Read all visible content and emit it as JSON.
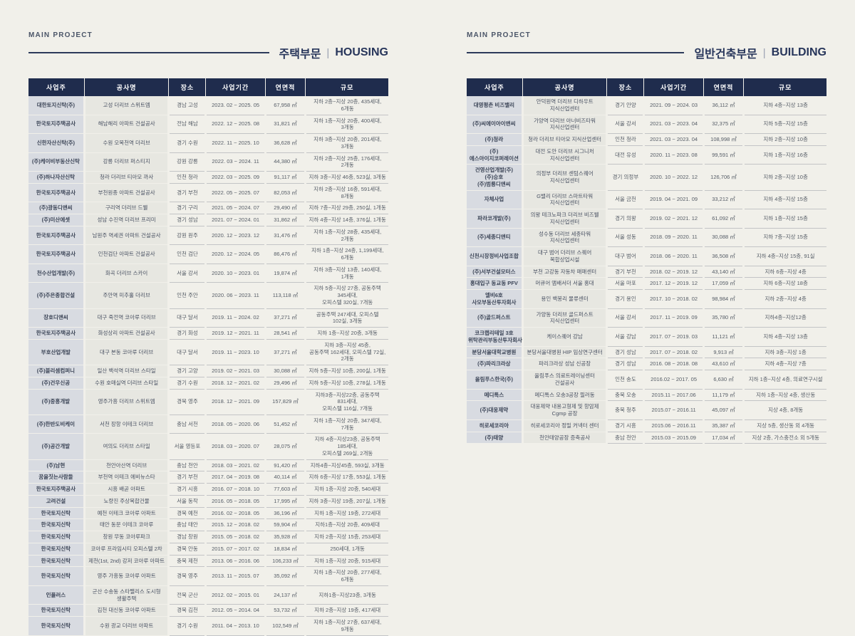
{
  "page": {
    "bg_color": "#f1f0ea",
    "navy": "#1f2c4d",
    "eyebrow": "MAIN PROJECT"
  },
  "sections": [
    {
      "eyebrow": "MAIN PROJECT",
      "title_ko": "주택부문",
      "title_divider": "|",
      "title_en": "HOUSING",
      "columns": [
        "사업주",
        "공사명",
        "장소",
        "사업기간",
        "연면적",
        "규모"
      ],
      "rows": [
        [
          "대한토지신탁(주)",
          "고성 더리브 스위트엠",
          "경남 고성",
          "2023. 02 ~ 2025. 05",
          "67,958 ㎡",
          "지하 2층~지상 20층, 435세대, 6개동"
        ],
        [
          "한국토지주택공사",
          "해남해리 아파트 건설공사",
          "전남 해남",
          "2022. 12 ~ 2025. 08",
          "31,821 ㎡",
          "지하 1층~지상 20층, 400세대, 3개동"
        ],
        [
          "신한자산신탁(주)",
          "수원 오목천역 더리브",
          "경기 수원",
          "2022. 11 ~ 2025. 10",
          "36,628 ㎡",
          "지하 3층~지상 20층, 201세대, 3개동"
        ],
        [
          "(주)케이비부동산신탁",
          "강릉 더리브 퍼스티지",
          "강원 강릉",
          "2022. 03 ~ 2024. 11",
          "44,380 ㎡",
          "지하 2층~지상 25층, 176세대, 2개동"
        ],
        [
          "(주)하나자산신탁",
          "청라 더리브 티아모 까사",
          "인천 청라",
          "2022. 03 ~ 2025. 09",
          "91,117 ㎡",
          "지하 3층~지상 46층, 523실, 3개동"
        ],
        [
          "한국토지주택공사",
          "부천원종 아파트 건설공사",
          "경기 부천",
          "2022. 05 ~ 2025. 07",
          "82,053 ㎡",
          "지하 2층~지상 16층, 591세대, 8개동"
        ],
        [
          "(주)광동디앤씨",
          "구리역 더리브 드웰",
          "경기 구리",
          "2021. 05 ~ 2024. 07",
          "29,490 ㎡",
          "지하 7층~지상 29층, 250실, 1개동"
        ],
        [
          "(주)미산에셋",
          "성남 수진역 더리브 프리미",
          "경기 성남",
          "2021. 07 ~ 2024. 01",
          "31,862 ㎡",
          "지하 4층~지상 14층, 376실, 1개동"
        ],
        [
          "한국토지주택공사",
          "남원주 역세권 아파트 건설공사",
          "강원 원주",
          "2020. 12 ~ 2023. 12",
          "31,476 ㎡",
          "지하 1층~지상 28층, 435세대, 2개동"
        ],
        [
          "한국토지주택공사",
          "인천검단 아파트 건설공사",
          "인천 검단",
          "2020. 12 ~ 2024. 05",
          "86,476 ㎡",
          "지하 1층~지상 24층, 1,199세대, 6개동"
        ],
        [
          "천수산업개발(주)",
          "화곡 더리브 스카이",
          "서울 강서",
          "2020. 10 ~ 2023. 01",
          "19,874 ㎡",
          "지하 3층~지상 13층, 140세대, 1개동"
        ],
        [
          "(주)주은종합건설",
          "주안역 미추홀 더리브",
          "인천 주안",
          "2020. 06 ~ 2023. 11",
          "113,118 ㎡",
          "지하 5층~지상 27층, 공동주택 345세대,\n오피스텔 320실, 7개동"
        ],
        [
          "장호디앤씨",
          "대구 죽전역 코아루 더리브",
          "대구 달서",
          "2019. 11 ~ 2024. 02",
          "37,271 ㎡",
          "공동주택 247세대, 오피스텔 102실, 3개동"
        ],
        [
          "한국토지주택공사",
          "화성상리 아파트 건설공사",
          "경기 화성",
          "2019. 12 ~ 2021. 11",
          "28,541 ㎡",
          "지하 1층~지상 20층, 3개동"
        ],
        [
          "부호산업개발",
          "대구 본동 코아루 더리브",
          "대구 달서",
          "2019. 11 ~ 2023. 10",
          "37,271 ㎡",
          "지하 3층~지상 45층,\n공동주택 162세대, 오피스텔 72실, 2개동"
        ],
        [
          "(주)블리셈컴퍼니",
          "일산 백석역 더리브 스타일",
          "경기 고양",
          "2019. 02 ~ 2021. 03",
          "30,088 ㎡",
          "지하 5층~지상 10층, 200실, 1개동"
        ],
        [
          "(주)건우신공",
          "수원 호매실역 더리브 스타일",
          "경기 수원",
          "2018. 12 ~ 2021. 02",
          "29,496 ㎡",
          "지하 5층~지상 10층, 278실, 1개동"
        ],
        [
          "(주)중흥개발",
          "영주가흥 더리브 스위트엠",
          "경북 영주",
          "2018. 12 ~ 2021. 09",
          "157,829 ㎡",
          "지하3층~지상22층, 공동주택 831세대,\n오피스텔 116실, 7개동"
        ],
        [
          "(주)한반도비케이",
          "서천 장항 이테크 더리브",
          "충남 서천",
          "2018. 05 ~ 2020. 06",
          "51,452 ㎡",
          "지하 1층~지상 20층, 347세대, 7개동"
        ],
        [
          "(주)공간개발",
          "여의도 더리브 스타일",
          "서울 영등포",
          "2018. 03 ~ 2020. 07",
          "28,075 ㎡",
          "지하 4층~지상23층, 공동주택 185세대,\n오피스텔 269실, 2개동"
        ],
        [
          "(주)남현",
          "천안아산역 더리브",
          "충남 천안",
          "2018. 03 ~ 2021. 02",
          "91,420 ㎡",
          "지하4층~지상45층, 593실, 3개동"
        ],
        [
          "꿈을짓는사람들",
          "부천역 이테크 에비뉴스타",
          "경기 부천",
          "2017. 04 ~ 2019. 08",
          "40,114 ㎡",
          "지하 6층~지상 17층, 553실, 1개동"
        ],
        [
          "한국토지주택공사",
          "시흥 배곧 아파트",
          "경기 시흥",
          "2016. 07 ~ 2018. 10",
          "77,603 ㎡",
          "지하 1층~지상 20층, 540세대"
        ],
        [
          "고려건설",
          "노량진 주상복합건물",
          "서울 동작",
          "2016. 05 ~ 2018. 05",
          "17,995 ㎡",
          "지하 3층~지상 19층, 207실, 1개동"
        ],
        [
          "한국토지신탁",
          "예천 이테크 코아루 아파트",
          "경북 예천",
          "2016. 02 ~ 2018. 05",
          "36,196 ㎡",
          "지하 1층~지상 19층, 272세대"
        ],
        [
          "한국토지신탁",
          "태안 동문 이테크 코아루",
          "충남 태안",
          "2015. 12 ~ 2018. 02",
          "59,904 ㎡",
          "지하1층~지상 20층, 409세대"
        ],
        [
          "한국토지신탁",
          "창원 무동 코아루파크",
          "경남 창원",
          "2015. 05 ~ 2018. 02",
          "35,928 ㎡",
          "지하 2층~지상 15층, 253세대"
        ],
        [
          "한국토지신탁",
          "코아루 프라임시티 오피스텔 2차",
          "경북 안동",
          "2015. 07 ~ 2017. 02",
          "18,834 ㎡",
          "250세대, 1개동"
        ],
        [
          "한국토지신탁",
          "제천(1st, 2nd) 강저 코아루 아파트",
          "충북 제천",
          "2013. 06 ~ 2016. 06",
          "106,233 ㎡",
          "지하 1층~지상 20층, 915세대"
        ],
        [
          "한국토지신탁",
          "영주 가흥동 코아루 아파트",
          "경북 영주",
          "2013. 11 ~ 2015. 07",
          "35,092 ㎡",
          "지하 1층~지상 20층, 277세대, 6개동"
        ],
        [
          "인플러스",
          "군산 수송동 스타팰리스 도시형 생활주택",
          "전북 군산",
          "2012. 02 ~ 2015. 01",
          "24,137 ㎡",
          "지하1층~지상23층, 3개동"
        ],
        [
          "한국토지신탁",
          "김천 대신동 코아루 아파트",
          "경북 김천",
          "2012. 05 ~ 2014. 04",
          "53,732 ㎡",
          "지하 2층~지상 19층, 417세대"
        ],
        [
          "한국토지신탁",
          "수원 광교 더리브 아파트",
          "경기 수원",
          "2011. 04 ~ 2013. 10",
          "102,549 ㎡",
          "지하 1층~지상 27층, 637세대, 9개동"
        ]
      ]
    },
    {
      "eyebrow": "MAIN PROJECT",
      "title_ko": "일반건축부문",
      "title_divider": "|",
      "title_en": "BUILDING",
      "columns": [
        "사업주",
        "공사명",
        "장소",
        "사업기간",
        "연면적",
        "규모"
      ],
      "rows": [
        [
          "대영평촌 비즈밸리",
          "안덕원역 더리브 디하우트 지식산업센터",
          "경기 안양",
          "2021. 09 ~ 2024. 03",
          "36,112 ㎡",
          "지하 4층~지상 13층"
        ],
        [
          "(주)씨에이아이앤씨",
          "가양역 더리브 아너비즈타워 지식산업센터",
          "서울 강서",
          "2021. 03 ~ 2023. 04",
          "32,375 ㎡",
          "지하 5층~지상 15층"
        ],
        [
          "(주)청라",
          "청라 더리브 티아모 지식산업센터",
          "인천 청라",
          "2021. 03 ~ 2023. 04",
          "108,998 ㎡",
          "지하 2층~지상 10층"
        ],
        [
          "(주)에스아이지코퍼레이션",
          "대전 도안 더리브 시그니처 지식산업센터",
          "대전 유성",
          "2020. 11 ~ 2023. 08",
          "99,591 ㎡",
          "지하 1층~지상 16층"
        ],
        [
          "건영산업개발(주)\n(주)승호\n(주)범룡디앤씨",
          "의정부 더리브 센텀스퀘어 지식산업센터",
          "경기 의정부",
          "2020. 10 ~ 2022. 12",
          "126,706 ㎡",
          "지하 2층~지상 10층"
        ],
        [
          "자체사업",
          "G밸리 더리브 스마트타워 지식산업센터",
          "서울 금천",
          "2019. 04 ~ 2021. 09",
          "33,212 ㎡",
          "지하 4층~지상 15층"
        ],
        [
          "파라코개발(주)",
          "의왕 테크노파크 더리브 비즈웰 지식산업센터",
          "경기 의왕",
          "2019. 02 ~ 2021. 12",
          "61,092 ㎡",
          "지하 1층~지상 15층"
        ],
        [
          "(주)세종디앤티",
          "성수동 더리브 세종타워 지식산업센터",
          "서울 성동",
          "2018. 09 ~ 2020. 11",
          "30,088 ㎡",
          "지하 7층~지상 15층"
        ],
        [
          "신천시장정비사업조합",
          "대구 범어 더리브 스퀘어 복합상업시설",
          "대구 범어",
          "2018. 06 ~ 2020. 11",
          "36,508 ㎡",
          "지하 4층~지상 15층, 91실"
        ],
        [
          "(주)서부건설모터스",
          "부천 고강동 자동차 매매센터",
          "경기 부천",
          "2018. 02 ~ 2019. 12",
          "43,140 ㎡",
          "지하 6층~지상 4층"
        ],
        [
          "홍대입구 동교동 PFV",
          "머큐어 앰배서더 서울 홍대",
          "서울 마포",
          "2017. 12 ~ 2019. 12",
          "17,059 ㎡",
          "지하 6층~지상 18층"
        ],
        [
          "엘비6호\n사모부동산투자회사",
          "용인 백봉리 물류센터",
          "경기 용인",
          "2017. 10 ~ 2018. 02",
          "98,984 ㎡",
          "지하 2층~지상 4층"
        ],
        [
          "(주)골드퍼스트",
          "가양동 더리브 골드퍼스트 지식산업센터",
          "서울 강서",
          "2017. 11 ~ 2019. 09",
          "35,780 ㎡",
          "지하4층~지상12층"
        ],
        [
          "코크랩리테일 3호\n위탁관리부동산투자회사",
          "케이스퀘어 강남",
          "서울 강남",
          "2017. 07 ~ 2019. 03",
          "11,121 ㎡",
          "지하 4층~지상 13층"
        ],
        [
          "분당서울대학교병원",
          "분당서울대병원 HIP 임상연구센터",
          "경기 성남",
          "2017. 07 ~ 2018. 02",
          "9,913 ㎡",
          "지하 3층~지상 1층"
        ],
        [
          "(주)파리크라상",
          "파리크라상 성남 신공장",
          "경기 성남",
          "2016. 08 ~ 2018. 08",
          "43,610 ㎡",
          "지하 4층~지상 7층"
        ],
        [
          "올림푸스한국(주)",
          "올림푸스 의료트레이닝센터 건설공사",
          "인천 송도",
          "2016.02 ~ 2017. 05",
          "6,630 ㎡",
          "지하 1층~지상 4층, 의료연구시설"
        ],
        [
          "메디톡스",
          "메디톡스 오송3공장 필러동",
          "충북 오송",
          "2015.11 ~ 2017.06",
          "11,179 ㎡",
          "지하 1층~지상 4층, 생산동"
        ],
        [
          "(주)대웅제약",
          "대웅제약 내용고형제 및 항암제 Cgmp 공장",
          "충북 청주",
          "2015.07 ~ 2016.11",
          "45,097 ㎡",
          "지상 4층, 8개동"
        ],
        [
          "히로세코리아",
          "히로세코리아 정밀 커넥터 센터",
          "경기 시흥",
          "2015.06 ~ 2016.11",
          "35,387 ㎡",
          "지상 5층, 생산동 외 4개동"
        ],
        [
          "(주)태양",
          "천안태양공장 증축공사",
          "충남 천안",
          "2015.03 ~ 2015.09",
          "17,034 ㎡",
          "지상 2층, 가스충전소 외 5개동"
        ]
      ]
    }
  ]
}
